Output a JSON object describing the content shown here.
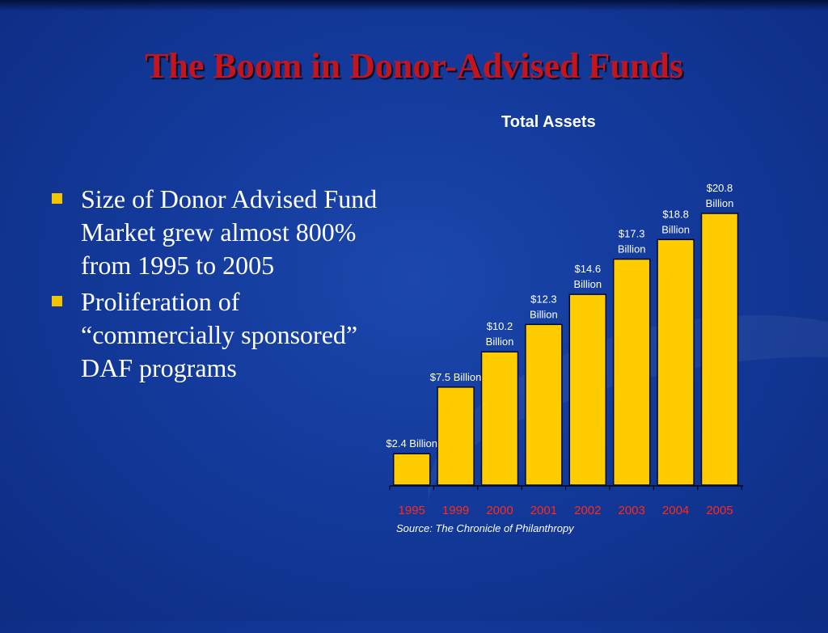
{
  "title": "The Boom in Donor-Advised Funds",
  "bullets": [
    "Size of Donor Advised Fund Market grew almost 800% from 1995 to 2005",
    "Proliferation of “commercially sponsored” DAF programs"
  ],
  "colors": {
    "background": "#133a9b",
    "title": "#c4151c",
    "bar": "#ffcc00",
    "tick_label": "#ff2a1a",
    "bullet": "#f5c400"
  },
  "chart_data": {
    "type": "bar",
    "title": "Total Assets",
    "categories": [
      "1995",
      "1999",
      "2000",
      "2001",
      "2002",
      "2003",
      "2004",
      "2005"
    ],
    "values": [
      2.4,
      7.5,
      10.2,
      12.3,
      14.6,
      17.3,
      18.8,
      20.8
    ],
    "data_labels": [
      [
        "$2.4 Billion"
      ],
      [
        "$7.5 Billion"
      ],
      [
        "$10.2",
        "Billion"
      ],
      [
        "$12.3",
        "Billion"
      ],
      [
        "$14.6",
        "Billion"
      ],
      [
        "$17.3",
        "Billion"
      ],
      [
        "$18.8",
        "Billion"
      ],
      [
        "$20.8",
        "Billion"
      ]
    ],
    "xlabel": "",
    "ylabel": "",
    "ylim": [
      0,
      20.8
    ],
    "grid": false,
    "legend": "none",
    "source": "Source: The Chronicle of Philanthropy"
  }
}
